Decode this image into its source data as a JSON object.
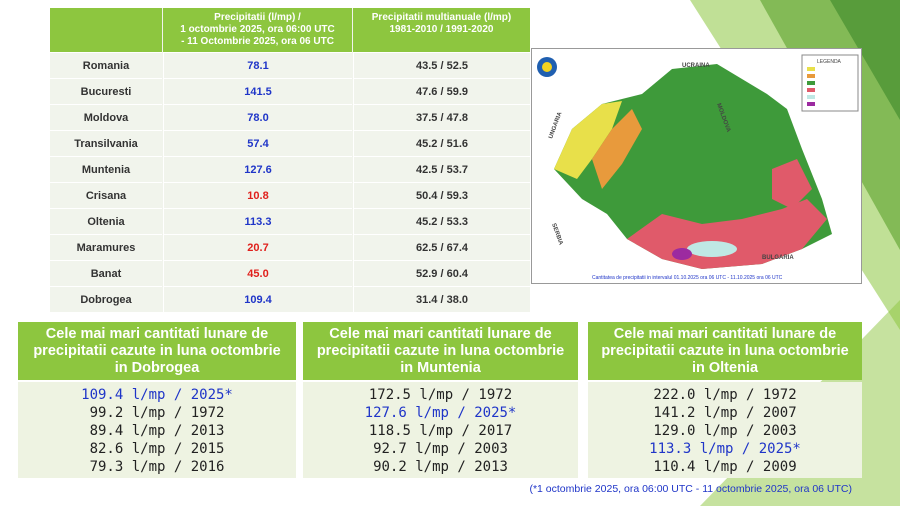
{
  "table": {
    "header_value": [
      "Precipitatii (l/mp) /",
      "1 octombrie 2025, ora 06:00 UTC",
      "- 11 Octombrie 2025, ora 06 UTC"
    ],
    "header_normal": [
      "Precipitatii multianuale (l/mp)",
      "1981-2010 / 1991-2020"
    ],
    "rows": [
      {
        "region": "Romania",
        "value": "78.1",
        "color": "#1f35c8",
        "normal": "43.5 / 52.5"
      },
      {
        "region": "Bucuresti",
        "value": "141.5",
        "color": "#1f35c8",
        "normal": "47.6 / 59.9"
      },
      {
        "region": "Moldova",
        "value": "78.0",
        "color": "#1f35c8",
        "normal": "37.5 / 47.8"
      },
      {
        "region": "Transilvania",
        "value": "57.4",
        "color": "#1f35c8",
        "normal": "45.2 / 51.6"
      },
      {
        "region": "Muntenia",
        "value": "127.6",
        "color": "#1f35c8",
        "normal": "42.5 / 53.7"
      },
      {
        "region": "Crisana",
        "value": "10.8",
        "color": "#e0201c",
        "normal": "50.4 / 59.3"
      },
      {
        "region": "Oltenia",
        "value": "113.3",
        "color": "#1f35c8",
        "normal": "45.2 / 53.3"
      },
      {
        "region": "Maramures",
        "value": "20.7",
        "color": "#e0201c",
        "normal": "62.5 / 67.4"
      },
      {
        "region": "Banat",
        "value": "45.0",
        "color": "#e0201c",
        "normal": "52.9 / 60.4"
      },
      {
        "region": "Dobrogea",
        "value": "109.4",
        "color": "#1f35c8",
        "normal": "31.4 / 38.0"
      }
    ]
  },
  "map": {
    "legend_title": "LEGENDA",
    "countries": [
      "UCRAINA",
      "MOLDOVA",
      "UNGARIA",
      "SERBIA",
      "BULGARIA"
    ],
    "caption": "Cantitatea de precipitatii in intervalul 01.10.2025 ora 06 UTC - 11.10.2025 ora 06 UTC"
  },
  "highlight_color": "#1f35c8",
  "boxes": [
    {
      "title": [
        "Cele mai mari cantitati lunare de",
        "precipitatii cazute in luna octombrie",
        "in Dobrogea"
      ],
      "entries": [
        {
          "text": "109.4 l/mp / 2025*",
          "highlight": true
        },
        {
          "text": "99.2 l/mp / 1972",
          "highlight": false
        },
        {
          "text": "89.4 l/mp / 2013",
          "highlight": false
        },
        {
          "text": "82.6 l/mp / 2015",
          "highlight": false
        },
        {
          "text": "79.3 l/mp / 2016",
          "highlight": false
        }
      ]
    },
    {
      "title": [
        "Cele mai mari cantitati lunare de",
        "precipitatii cazute in luna octombrie",
        "in Muntenia"
      ],
      "entries": [
        {
          "text": "172.5 l/mp / 1972",
          "highlight": false
        },
        {
          "text": "127.6 l/mp / 2025*",
          "highlight": true
        },
        {
          "text": "118.5 l/mp / 2017",
          "highlight": false
        },
        {
          "text": "92.7 l/mp / 2003",
          "highlight": false
        },
        {
          "text": "90.2 l/mp / 2013",
          "highlight": false
        }
      ]
    },
    {
      "title": [
        "Cele mai mari cantitati lunare de",
        "precipitatii cazute in luna octombrie",
        "in Oltenia"
      ],
      "entries": [
        {
          "text": "222.0 l/mp / 1972",
          "highlight": false
        },
        {
          "text": "141.2 l/mp / 2007",
          "highlight": false
        },
        {
          "text": "129.0 l/mp / 2003",
          "highlight": false
        },
        {
          "text": "113.3 l/mp / 2025*",
          "highlight": true
        },
        {
          "text": "110.4 l/mp / 2009",
          "highlight": false
        }
      ]
    }
  ],
  "footnote": "(*1 octombrie 2025, ora 06:00 UTC - 11 octombrie 2025, ora 06 UTC)"
}
